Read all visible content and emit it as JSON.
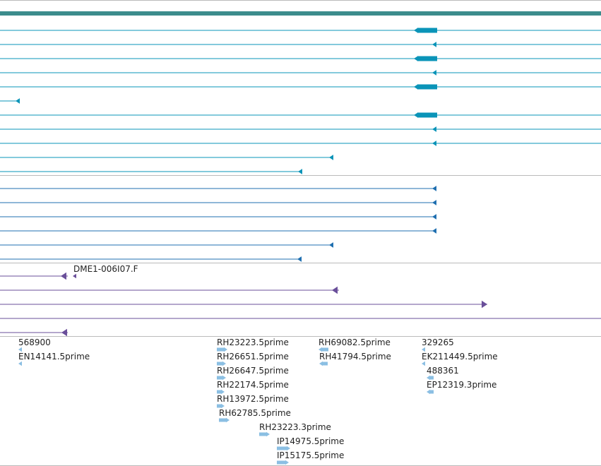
{
  "colors": {
    "track_border": "#bbbbbb",
    "gene_bar": "#3c8c8c",
    "transcripts_a": "#0a94b8",
    "transcripts_b": "#1f6fb0",
    "transcripts_c": "#6a4f9a",
    "est_reads": "#8bbfe3"
  },
  "genes": {
    "top_bar_present": true
  },
  "transcripts_a": [
    {
      "strand": "-",
      "exon_blocks": [
        "wide"
      ]
    },
    {
      "strand": "-",
      "exon_blocks": [
        "small"
      ]
    },
    {
      "strand": "-",
      "exon_blocks": [
        "wide"
      ]
    },
    {
      "strand": "-",
      "exon_blocks": [
        "small"
      ]
    },
    {
      "strand": "-",
      "exon_blocks": [
        "wide"
      ]
    },
    {
      "strand": "-",
      "exon_blocks": [
        "small"
      ]
    },
    {
      "strand": "-",
      "exon_blocks": [
        "wide"
      ]
    },
    {
      "strand": "-",
      "exon_blocks": [
        "small"
      ]
    },
    {
      "strand": "-",
      "exon_blocks": [
        "small"
      ]
    },
    {
      "strand": "-",
      "exon_blocks": [
        "small"
      ]
    },
    {
      "strand": "-",
      "exon_blocks": [
        "small"
      ]
    }
  ],
  "transcripts_b": [
    {
      "strand": "-"
    },
    {
      "strand": "-"
    },
    {
      "strand": "-"
    },
    {
      "strand": "-"
    },
    {
      "strand": "-"
    },
    {
      "strand": "-"
    }
  ],
  "transcripts_c": [
    {
      "label": "DME1-006I07.F",
      "strand": "-"
    },
    {
      "label": "",
      "strand": "-"
    },
    {
      "label": "",
      "strand": "+"
    },
    {
      "label": "",
      "strand": "none"
    },
    {
      "label": "",
      "strand": "-"
    }
  ],
  "est_reads": [
    {
      "label": "568900",
      "strand": "-"
    },
    {
      "label": "EN14141.5prime",
      "strand": "-"
    },
    {
      "label": "RH23223.5prime",
      "strand": "+"
    },
    {
      "label": "RH26651.5prime",
      "strand": "+"
    },
    {
      "label": "RH26647.5prime",
      "strand": "+"
    },
    {
      "label": "RH22174.5prime",
      "strand": "+"
    },
    {
      "label": "RH13972.5prime",
      "strand": "+"
    },
    {
      "label": "RH62785.5prime",
      "strand": "+"
    },
    {
      "label": "RH23223.3prime",
      "strand": "+"
    },
    {
      "label": "IP14975.5prime",
      "strand": "+"
    },
    {
      "label": "IP15175.5prime",
      "strand": "+"
    },
    {
      "label": "RH69082.5prime",
      "strand": "-"
    },
    {
      "label": "RH41794.5prime",
      "strand": "-"
    },
    {
      "label": "329265",
      "strand": "-"
    },
    {
      "label": "EK211449.5prime",
      "strand": "-"
    },
    {
      "label": "488361",
      "strand": "-"
    },
    {
      "label": "EP12319.3prime",
      "strand": "-"
    }
  ]
}
